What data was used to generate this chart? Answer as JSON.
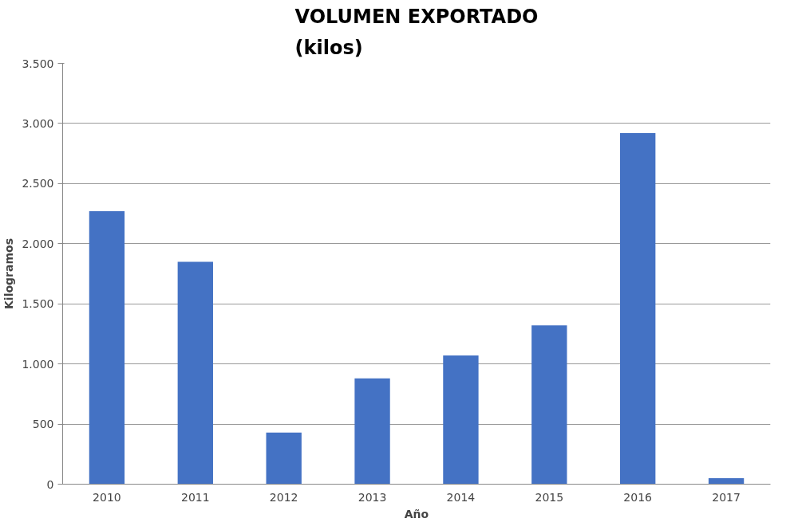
{
  "chart_data": {
    "type": "bar",
    "title": "VOLUMEN EXPORTADO\n(kilos)",
    "xlabel": "Año",
    "ylabel": "Kilogramos",
    "categories": [
      "2010",
      "2011",
      "2012",
      "2013",
      "2014",
      "2015",
      "2016",
      "2017"
    ],
    "values": [
      2270,
      1850,
      430,
      880,
      1070,
      1320,
      2920,
      50
    ],
    "color": "#4472c4",
    "ylim": [
      0,
      3500
    ],
    "yticks": [
      {
        "value": 0,
        "label": "0"
      },
      {
        "value": 500,
        "label": "500"
      },
      {
        "value": 1000,
        "label": "1.000"
      },
      {
        "value": 1500,
        "label": "1.500"
      },
      {
        "value": 2000,
        "label": "2.000"
      },
      {
        "value": 2500,
        "label": "2.500"
      },
      {
        "value": 3000,
        "label": "3.000"
      },
      {
        "value": 3500,
        "label": "3.500"
      }
    ],
    "grid": "y"
  }
}
